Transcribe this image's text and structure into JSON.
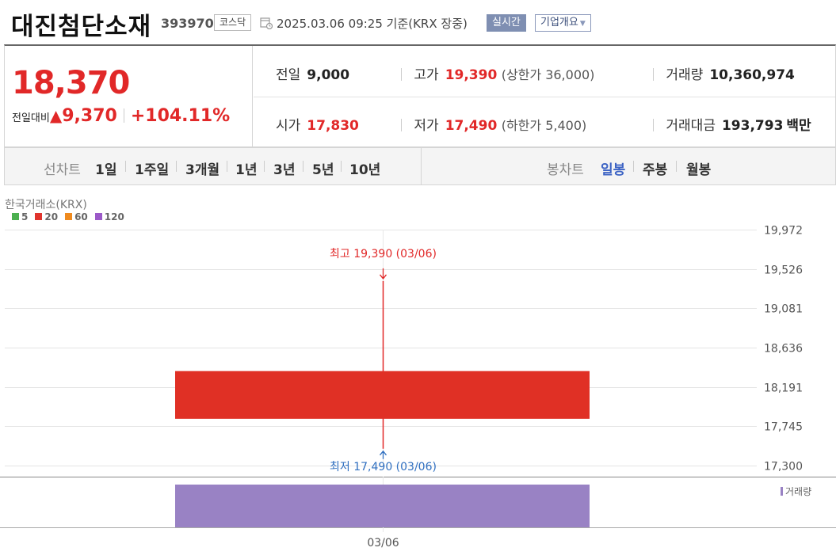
{
  "header": {
    "stock_name": "대진첨단소재",
    "stock_code": "393970",
    "market": "코스닥",
    "datetime": "2025.03.06 09:25 기준(KRX 장중)",
    "realtime_label": "실시간",
    "overview_label": "기업개요",
    "calendar_icon": "calendar-clock-icon"
  },
  "summary": {
    "current_price": "18,370",
    "change_label": "전일대비",
    "change_icon": "up-triangle-icon",
    "change_symbol": "▲",
    "change_amount": "9,370",
    "change_percent": "+104.11%",
    "stats": {
      "prev_close": {
        "label": "전일",
        "value": "9,000"
      },
      "high": {
        "label": "고가",
        "value": "19,390",
        "sub": "(상한가 36,000)"
      },
      "volume": {
        "label": "거래량",
        "value": "10,360,974"
      },
      "open": {
        "label": "시가",
        "value": "17,830"
      },
      "low": {
        "label": "저가",
        "value": "17,490",
        "sub": "(하한가 5,400)"
      },
      "trade_value": {
        "label": "거래대금",
        "value": "193,793",
        "unit": "백만"
      }
    }
  },
  "tabs": {
    "line_chart_label": "선차트",
    "line_periods": [
      "1일",
      "1주일",
      "3개월",
      "1년",
      "3년",
      "5년",
      "10년"
    ],
    "candle_chart_label": "봉차트",
    "candle_periods": [
      "일봉",
      "주봉",
      "월봉"
    ],
    "active_candle_period": "일봉"
  },
  "colors": {
    "up": "#e12828",
    "down": "#2f6fc0",
    "active_tab": "#3c63c4",
    "volume_bar": "#9982c4"
  },
  "chart_data": {
    "type": "candlestick",
    "exchange_label": "한국거래소(KRX)",
    "legend": [
      {
        "name": "5",
        "color": "#4cb050"
      },
      {
        "name": "20",
        "color": "#e0342d"
      },
      {
        "name": "60",
        "color": "#ef8a1e"
      },
      {
        "name": "120",
        "color": "#9b59c8"
      }
    ],
    "candles": [
      {
        "date": "03/06",
        "open": 17830,
        "high": 19390,
        "low": 17490,
        "close": 18370,
        "volume": 10360974
      }
    ],
    "y_ticks": [
      "19,972",
      "19,526",
      "19,081",
      "18,636",
      "18,191",
      "17,745",
      "17,300"
    ],
    "ylim": [
      17300,
      19972
    ],
    "high_annotation": "최고 19,390 (03/06)",
    "low_annotation": "최저 17,490 (03/06)",
    "x_ticks": [
      "03/06"
    ],
    "volume_label": "거래량",
    "grid": true
  }
}
